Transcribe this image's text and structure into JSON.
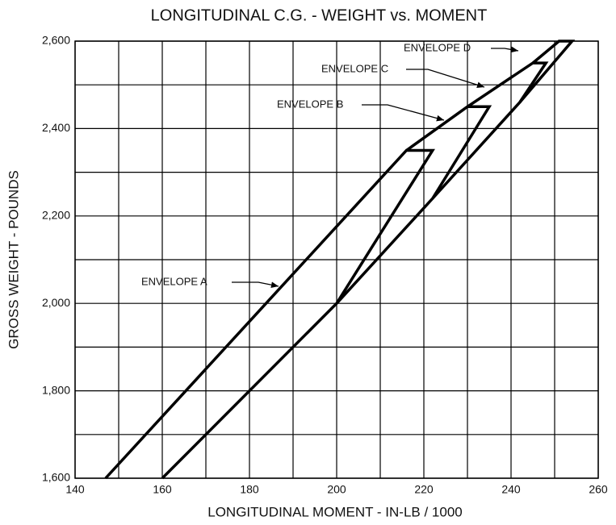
{
  "chart_data": {
    "type": "line",
    "title": "LONGITUDINAL C.G. -  WEIGHT vs. MOMENT",
    "xlabel": "LONGITUDINAL MOMENT - IN-LB / 1000",
    "ylabel": "GROSS WEIGHT - POUNDS",
    "xlim": [
      140,
      260
    ],
    "ylim": [
      1600,
      2600
    ],
    "xticks": [
      140,
      160,
      180,
      200,
      220,
      240,
      260
    ],
    "minor_xticks": [
      150,
      170,
      190,
      210,
      230,
      250
    ],
    "yticks": [
      {
        "value": 1600,
        "label": "1,600"
      },
      {
        "value": 1800,
        "label": "1,800"
      },
      {
        "value": 2000,
        "label": "2,000"
      },
      {
        "value": 2200,
        "label": "2,200"
      },
      {
        "value": 2400,
        "label": "2,400"
      },
      {
        "value": 2600,
        "label": "2,600"
      }
    ],
    "minor_yticks": [
      1700,
      1900,
      2100,
      2300,
      2500
    ],
    "grid": true,
    "series": [
      {
        "name": "ENVELOPE A",
        "color": "#000000",
        "x": [
          147,
          216,
          222,
          200,
          160
        ],
        "values": [
          1600,
          2350,
          2350,
          2000,
          1600
        ]
      },
      {
        "name": "ENVELOPE B",
        "color": "#000000",
        "x": [
          216,
          230,
          235,
          222,
          200
        ],
        "values": [
          2350,
          2450,
          2450,
          2240,
          2000
        ]
      },
      {
        "name": "ENVELOPE C",
        "color": "#000000",
        "x": [
          230,
          245,
          248,
          242,
          222
        ],
        "values": [
          2450,
          2550,
          2550,
          2460,
          2240
        ]
      },
      {
        "name": "ENVELOPE D",
        "color": "#000000",
        "x": [
          245,
          251,
          254,
          242
        ],
        "values": [
          2550,
          2600,
          2600,
          2460
        ]
      }
    ]
  }
}
